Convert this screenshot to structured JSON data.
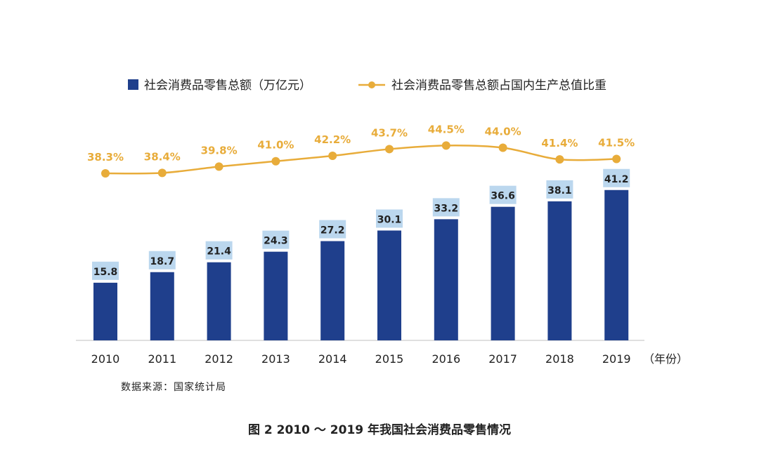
{
  "chart_data": {
    "type": "bar",
    "categories": [
      "2010",
      "2011",
      "2012",
      "2013",
      "2014",
      "2015",
      "2016",
      "2017",
      "2018",
      "2019"
    ],
    "series": [
      {
        "name": "社会消费品零售总额（万亿元）",
        "type": "bar",
        "labels": [
          "15.8",
          "18.7",
          "21.4",
          "24.3",
          "27.2",
          "30.1",
          "33.2",
          "36.6",
          "38.1",
          "41.2"
        ],
        "values": [
          15.8,
          18.7,
          21.4,
          24.3,
          27.2,
          30.1,
          33.2,
          36.6,
          38.1,
          41.2
        ]
      },
      {
        "name": "社会消费品零售总额占国内生产总值比重",
        "type": "line",
        "labels": [
          "38.3%",
          "38.4%",
          "39.8%",
          "41.0%",
          "42.2%",
          "43.7%",
          "44.5%",
          "44.0%",
          "41.4%",
          "41.5%"
        ],
        "values": [
          38.3,
          38.4,
          39.8,
          41.0,
          42.2,
          43.7,
          44.5,
          44.0,
          41.4,
          41.5
        ]
      }
    ],
    "x_unit": "（年份）",
    "colors": {
      "bar": "#1F3F8C",
      "bar_label_bg": "#BBD7EE",
      "line": "#E8AC3A",
      "axis": "#BFBFBF"
    },
    "grid": false,
    "legend": "top"
  },
  "source": "数据来源：国家统计局",
  "caption": "图 2  2010 ～ 2019 年我国社会消费品零售情况"
}
